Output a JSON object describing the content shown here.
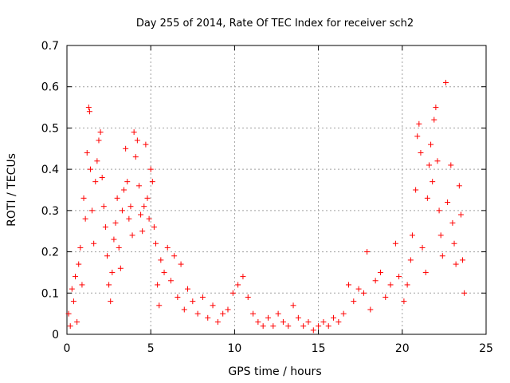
{
  "chart_data": {
    "type": "scatter",
    "title": "Day 255 of 2014, Rate Of TEC Index for receiver sch2",
    "xlabel": "GPS time / hours",
    "ylabel": "ROTI / TECUs",
    "xlim": [
      0,
      25
    ],
    "ylim": [
      0,
      0.7
    ],
    "xticks": [
      0,
      5,
      10,
      15,
      20,
      25
    ],
    "xtick_labels": [
      "0",
      "5",
      "10",
      "15",
      "20",
      "25"
    ],
    "yticks": [
      0,
      0.1,
      0.2,
      0.3,
      0.4,
      0.5,
      0.6,
      0.7
    ],
    "ytick_labels": [
      "0",
      "0.1",
      "0.2",
      "0.3",
      "0.4",
      "0.5",
      "0.6",
      "0.7"
    ],
    "grid": true,
    "marker": "+",
    "color": "#ff0000",
    "series": [
      {
        "name": "ROTI",
        "points": [
          [
            0.1,
            0.05
          ],
          [
            0.2,
            0.02
          ],
          [
            0.3,
            0.11
          ],
          [
            0.4,
            0.08
          ],
          [
            0.5,
            0.14
          ],
          [
            0.6,
            0.03
          ],
          [
            0.7,
            0.17
          ],
          [
            0.8,
            0.21
          ],
          [
            0.9,
            0.12
          ],
          [
            1.0,
            0.33
          ],
          [
            1.1,
            0.28
          ],
          [
            1.2,
            0.44
          ],
          [
            1.3,
            0.55
          ],
          [
            1.35,
            0.54
          ],
          [
            1.4,
            0.4
          ],
          [
            1.5,
            0.3
          ],
          [
            1.6,
            0.22
          ],
          [
            1.7,
            0.37
          ],
          [
            1.8,
            0.42
          ],
          [
            1.9,
            0.47
          ],
          [
            2.0,
            0.49
          ],
          [
            2.1,
            0.38
          ],
          [
            2.2,
            0.31
          ],
          [
            2.3,
            0.26
          ],
          [
            2.4,
            0.19
          ],
          [
            2.5,
            0.12
          ],
          [
            2.6,
            0.08
          ],
          [
            2.7,
            0.15
          ],
          [
            2.8,
            0.23
          ],
          [
            2.9,
            0.27
          ],
          [
            3.0,
            0.33
          ],
          [
            3.1,
            0.21
          ],
          [
            3.2,
            0.16
          ],
          [
            3.3,
            0.3
          ],
          [
            3.4,
            0.35
          ],
          [
            3.5,
            0.45
          ],
          [
            3.6,
            0.37
          ],
          [
            3.7,
            0.28
          ],
          [
            3.8,
            0.31
          ],
          [
            3.9,
            0.24
          ],
          [
            4.0,
            0.49
          ],
          [
            4.1,
            0.43
          ],
          [
            4.2,
            0.47
          ],
          [
            4.3,
            0.36
          ],
          [
            4.4,
            0.29
          ],
          [
            4.5,
            0.25
          ],
          [
            4.6,
            0.31
          ],
          [
            4.7,
            0.46
          ],
          [
            4.8,
            0.33
          ],
          [
            4.9,
            0.28
          ],
          [
            5.0,
            0.4
          ],
          [
            5.1,
            0.37
          ],
          [
            5.2,
            0.26
          ],
          [
            5.3,
            0.22
          ],
          [
            5.4,
            0.12
          ],
          [
            5.5,
            0.07
          ],
          [
            5.6,
            0.18
          ],
          [
            5.8,
            0.15
          ],
          [
            6.0,
            0.21
          ],
          [
            6.2,
            0.13
          ],
          [
            6.4,
            0.19
          ],
          [
            6.6,
            0.09
          ],
          [
            6.8,
            0.17
          ],
          [
            7.0,
            0.06
          ],
          [
            7.2,
            0.11
          ],
          [
            7.5,
            0.08
          ],
          [
            7.8,
            0.05
          ],
          [
            8.1,
            0.09
          ],
          [
            8.4,
            0.04
          ],
          [
            8.7,
            0.07
          ],
          [
            9.0,
            0.03
          ],
          [
            9.3,
            0.05
          ],
          [
            9.6,
            0.06
          ],
          [
            9.9,
            0.1
          ],
          [
            10.2,
            0.12
          ],
          [
            10.5,
            0.14
          ],
          [
            10.8,
            0.09
          ],
          [
            11.1,
            0.05
          ],
          [
            11.4,
            0.03
          ],
          [
            11.7,
            0.02
          ],
          [
            12.0,
            0.04
          ],
          [
            12.3,
            0.02
          ],
          [
            12.6,
            0.05
          ],
          [
            12.9,
            0.03
          ],
          [
            13.2,
            0.02
          ],
          [
            13.5,
            0.07
          ],
          [
            13.8,
            0.04
          ],
          [
            14.1,
            0.02
          ],
          [
            14.4,
            0.03
          ],
          [
            14.7,
            0.01
          ],
          [
            15.0,
            0.02
          ],
          [
            15.3,
            0.03
          ],
          [
            15.6,
            0.02
          ],
          [
            15.9,
            0.04
          ],
          [
            16.2,
            0.03
          ],
          [
            16.5,
            0.05
          ],
          [
            16.8,
            0.12
          ],
          [
            17.1,
            0.08
          ],
          [
            17.4,
            0.11
          ],
          [
            17.7,
            0.1
          ],
          [
            17.9,
            0.2
          ],
          [
            18.1,
            0.06
          ],
          [
            18.4,
            0.13
          ],
          [
            18.7,
            0.15
          ],
          [
            19.0,
            0.09
          ],
          [
            19.3,
            0.12
          ],
          [
            19.6,
            0.22
          ],
          [
            19.8,
            0.14
          ],
          [
            20.1,
            0.08
          ],
          [
            20.3,
            0.12
          ],
          [
            20.5,
            0.18
          ],
          [
            20.6,
            0.24
          ],
          [
            20.8,
            0.35
          ],
          [
            20.9,
            0.48
          ],
          [
            21.0,
            0.51
          ],
          [
            21.1,
            0.44
          ],
          [
            21.2,
            0.21
          ],
          [
            21.4,
            0.15
          ],
          [
            21.5,
            0.33
          ],
          [
            21.6,
            0.41
          ],
          [
            21.7,
            0.46
          ],
          [
            21.8,
            0.37
          ],
          [
            21.9,
            0.52
          ],
          [
            22.0,
            0.55
          ],
          [
            22.1,
            0.42
          ],
          [
            22.2,
            0.3
          ],
          [
            22.3,
            0.24
          ],
          [
            22.4,
            0.19
          ],
          [
            22.6,
            0.61
          ],
          [
            22.7,
            0.32
          ],
          [
            22.9,
            0.41
          ],
          [
            23.0,
            0.27
          ],
          [
            23.1,
            0.22
          ],
          [
            23.2,
            0.17
          ],
          [
            23.4,
            0.36
          ],
          [
            23.5,
            0.29
          ],
          [
            23.6,
            0.18
          ],
          [
            23.7,
            0.1
          ]
        ]
      }
    ]
  }
}
